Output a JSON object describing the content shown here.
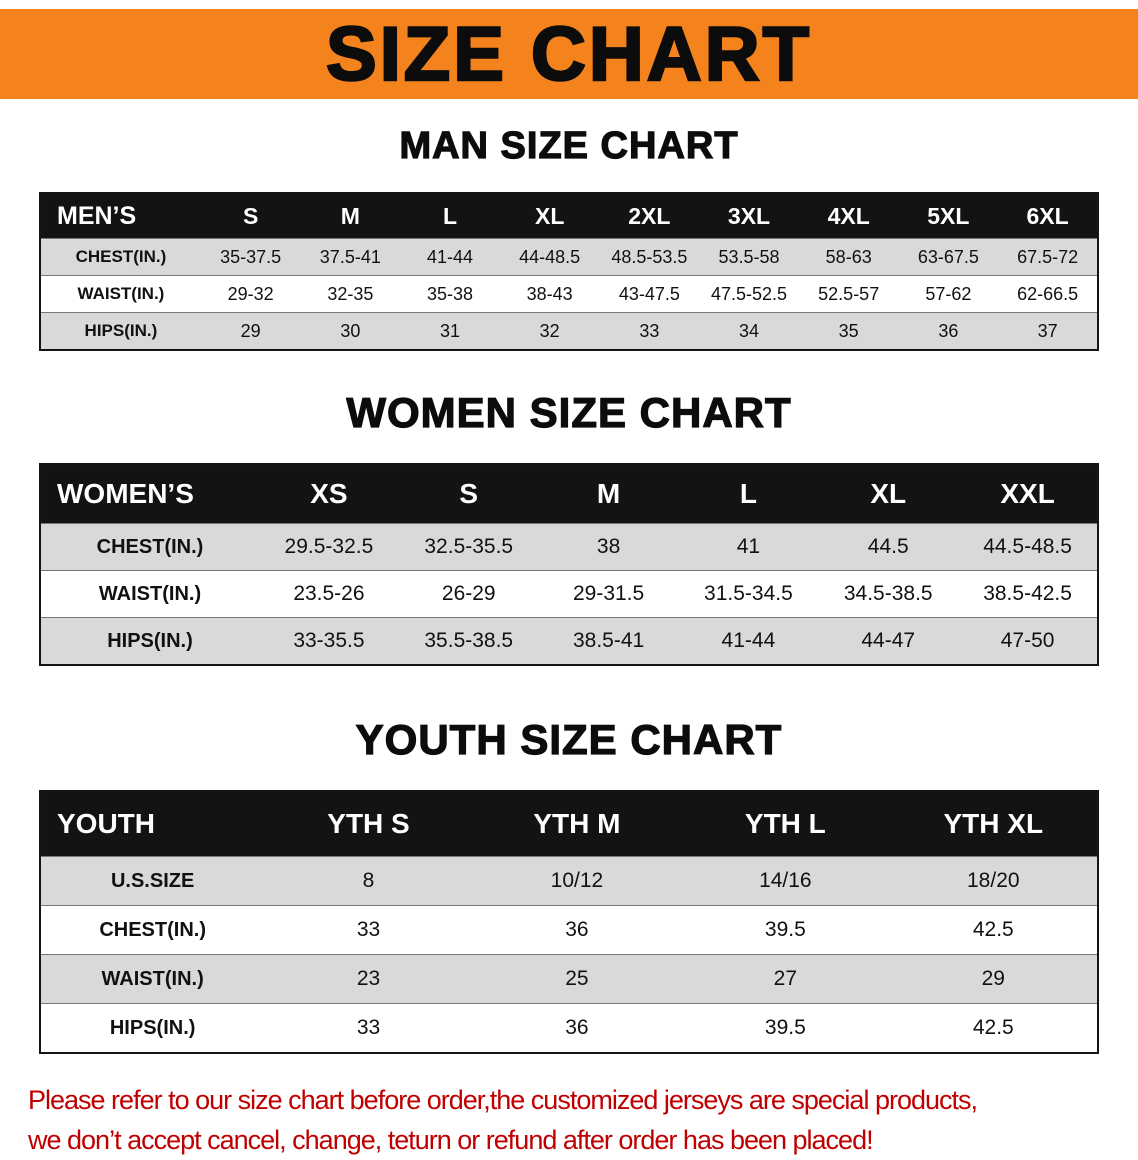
{
  "banner": {
    "title": "SIZE CHART",
    "bg_color": "#F5831D",
    "text_color": "#0c0c0c"
  },
  "sections": [
    {
      "id": "mens",
      "heading": "MAN SIZE CHART",
      "table": {
        "header": [
          "MEN’S",
          "S",
          "M",
          "L",
          "XL",
          "2XL",
          "3XL",
          "4XL",
          "5XL",
          "6XL"
        ],
        "rows": [
          {
            "label": "CHEST(IN.)",
            "values": [
              "35-37.5",
              "37.5-41",
              "41-44",
              "44-48.5",
              "48.5-53.5",
              "53.5-58",
              "58-63",
              "63-67.5",
              "67.5-72"
            ]
          },
          {
            "label": "WAIST(IN.)",
            "values": [
              "29-32",
              "32-35",
              "35-38",
              "38-43",
              "43-47.5",
              "47.5-52.5",
              "52.5-57",
              "57-62",
              "62-66.5"
            ]
          },
          {
            "label": "HIPS(IN.)",
            "values": [
              "29",
              "30",
              "31",
              "32",
              "33",
              "34",
              "35",
              "36",
              "37"
            ]
          }
        ]
      }
    },
    {
      "id": "womens",
      "heading": "WOMEN SIZE CHART",
      "table": {
        "header": [
          "WOMEN’S",
          "XS",
          "S",
          "M",
          "L",
          "XL",
          "XXL"
        ],
        "rows": [
          {
            "label": "CHEST(IN.)",
            "values": [
              "29.5-32.5",
              "32.5-35.5",
              "38",
              "41",
              "44.5",
              "44.5-48.5"
            ]
          },
          {
            "label": "WAIST(IN.)",
            "values": [
              "23.5-26",
              "26-29",
              "29-31.5",
              "31.5-34.5",
              "34.5-38.5",
              "38.5-42.5"
            ]
          },
          {
            "label": "HIPS(IN.)",
            "values": [
              "33-35.5",
              "35.5-38.5",
              "38.5-41",
              "41-44",
              "44-47",
              "47-50"
            ]
          }
        ]
      }
    },
    {
      "id": "youth",
      "heading": "YOUTH SIZE CHART",
      "table": {
        "header": [
          "YOUTH",
          "YTH S",
          "YTH M",
          "YTH L",
          "YTH XL"
        ],
        "rows": [
          {
            "label": "U.S.SIZE",
            "values": [
              "8",
              "10/12",
              "14/16",
              "18/20"
            ]
          },
          {
            "label": "CHEST(IN.)",
            "values": [
              "33",
              "36",
              "39.5",
              "42.5"
            ]
          },
          {
            "label": "WAIST(IN.)",
            "values": [
              "23",
              "25",
              "27",
              "29"
            ]
          },
          {
            "label": "HIPS(IN.)",
            "values": [
              "33",
              "36",
              "39.5",
              "42.5"
            ]
          }
        ]
      }
    }
  ],
  "disclaimer": {
    "color": "#C00000",
    "line1": "Please refer to our size chart before order,the customized jerseys are special products,",
    "line2": "we don’t accept cancel, change, teturn or refund after order has been placed!"
  }
}
